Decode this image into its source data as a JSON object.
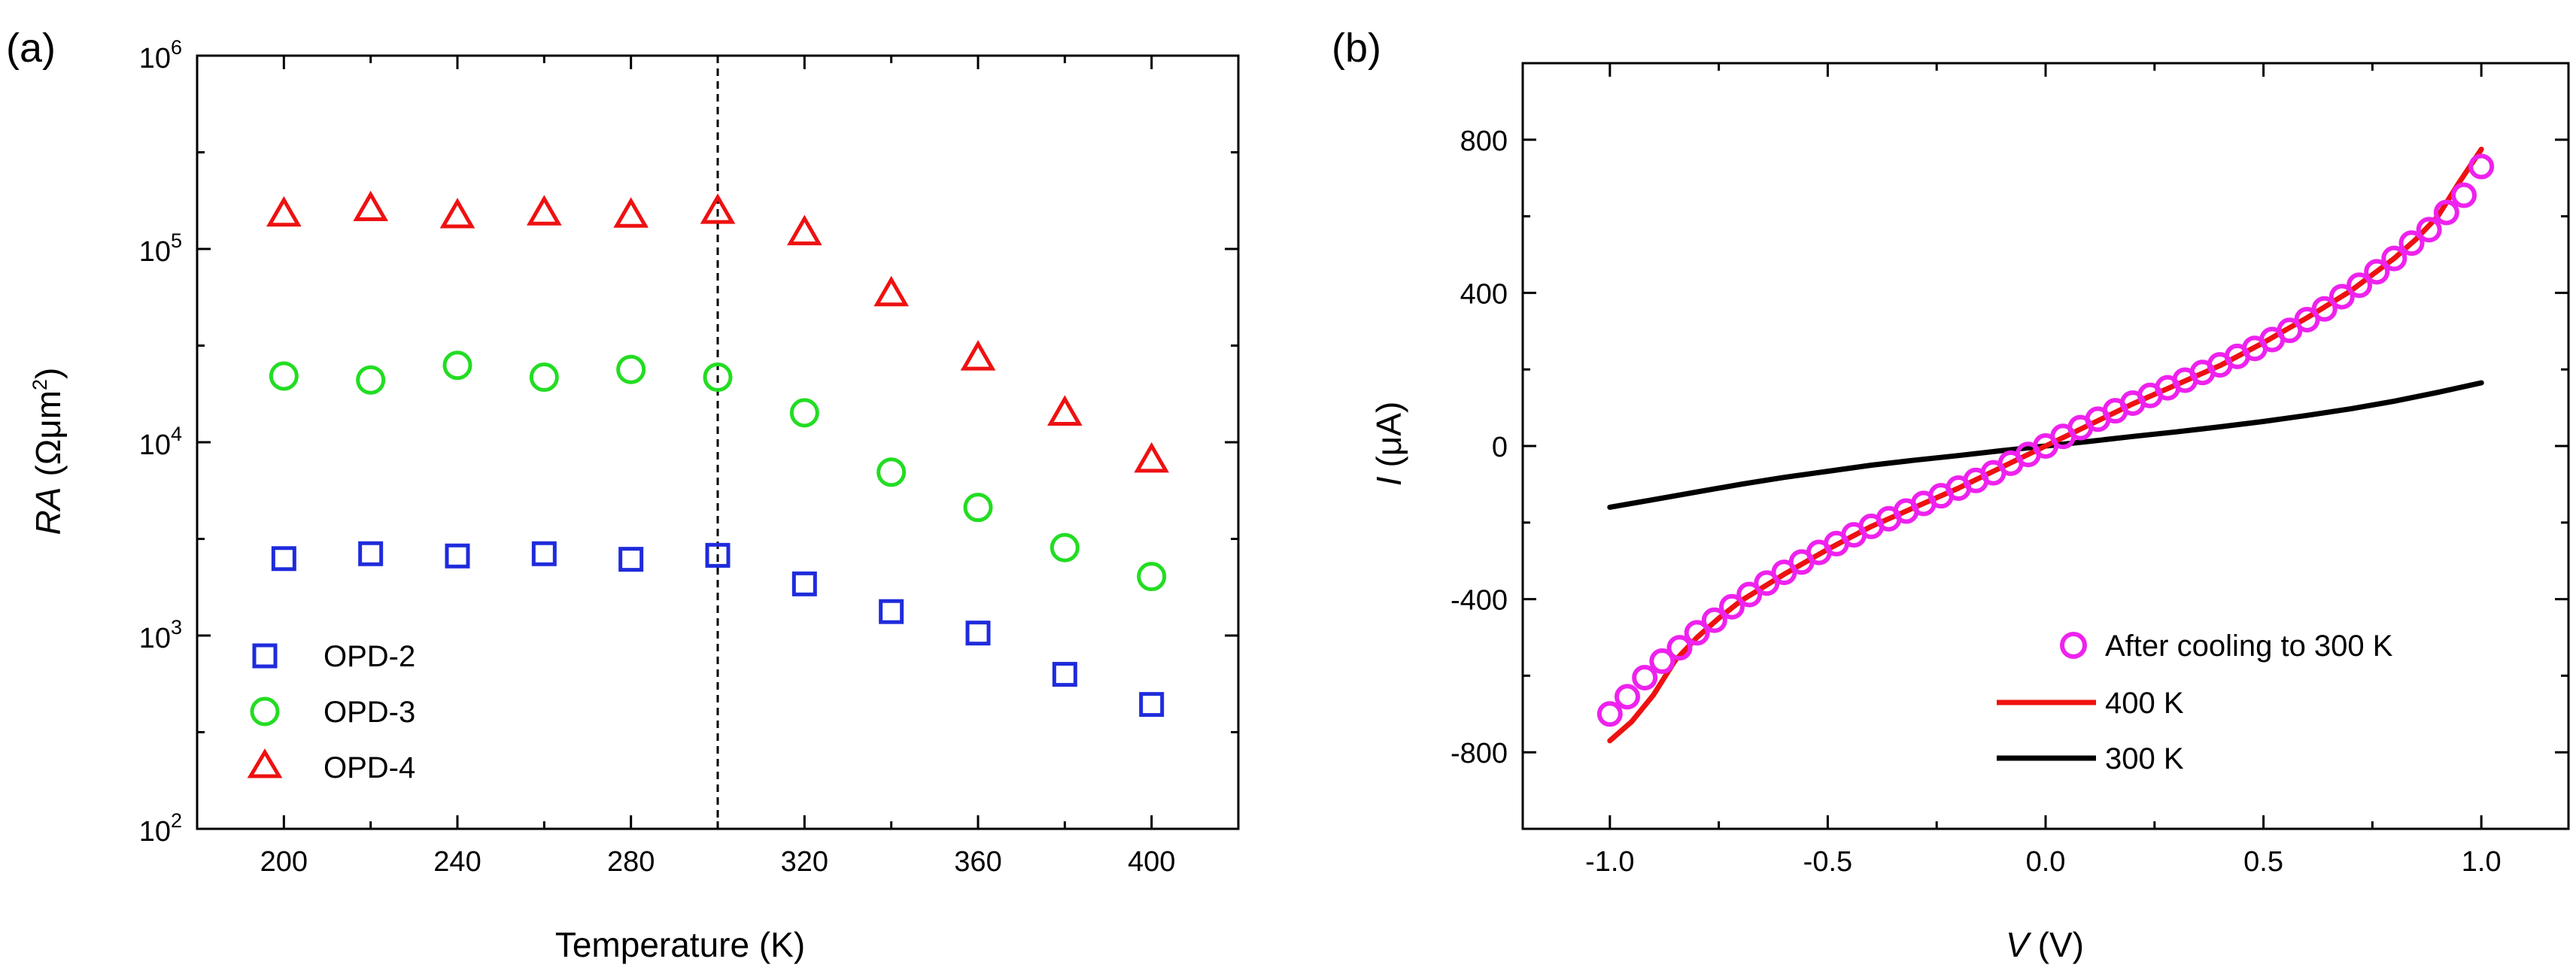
{
  "chart_data": [
    {
      "panel": "(a)",
      "type": "scatter",
      "title": "",
      "xlabel": "Temperature  (K)",
      "ylabel_italic": "RA",
      "ylabel_unit": "(Ωμm",
      "ylabel_unit_sup": "2",
      "ylabel_unit_end": ")",
      "yscale": "log",
      "xlim": [
        180,
        420
      ],
      "ylim": [
        100,
        1000000
      ],
      "xticks": [
        "200",
        "240",
        "280",
        "320",
        "360",
        "400"
      ],
      "yticks": [
        {
          "base": "10",
          "exp": "2"
        },
        {
          "base": "10",
          "exp": "3"
        },
        {
          "base": "10",
          "exp": "4"
        },
        {
          "base": "10",
          "exp": "5"
        },
        {
          "base": "10",
          "exp": "6"
        }
      ],
      "vline_x": 300,
      "legend_position": "bottom-left",
      "series": [
        {
          "name": "OPD-2",
          "marker": "square",
          "color": "#1f2bdc",
          "x": [
            200,
            220,
            240,
            260,
            280,
            300,
            320,
            340,
            360,
            380,
            400
          ],
          "y": [
            2500,
            2650,
            2580,
            2650,
            2480,
            2600,
            1850,
            1330,
            1030,
            630,
            440
          ]
        },
        {
          "name": "OPD-3",
          "marker": "circle",
          "color": "#22dd22",
          "x": [
            200,
            220,
            240,
            260,
            280,
            300,
            320,
            340,
            360,
            380,
            400
          ],
          "y": [
            22000,
            21000,
            25000,
            21700,
            23800,
            21700,
            14200,
            7000,
            4600,
            2850,
            2020
          ]
        },
        {
          "name": "OPD-4",
          "marker": "triangle",
          "color": "#ee1111",
          "x": [
            200,
            220,
            240,
            260,
            280,
            300,
            320,
            340,
            360,
            380,
            400
          ],
          "y": [
            150000,
            160000,
            147000,
            152000,
            148000,
            155000,
            120000,
            58000,
            27000,
            14000,
            8000
          ]
        }
      ]
    },
    {
      "panel": "(b)",
      "type": "line",
      "title": "",
      "xlabel_italic": "V",
      "xlabel_unit": "(V)",
      "ylabel_italic": "I",
      "ylabel_unit": "(μA)",
      "xlim": [
        -1.2,
        1.2
      ],
      "ylim": [
        -1000,
        1000
      ],
      "xticks": [
        "-1.0",
        "-0.5",
        "0.0",
        "0.5",
        "1.0"
      ],
      "yticks": [
        "-800",
        "-400",
        "0",
        "400",
        "800"
      ],
      "legend_position": "bottom-right",
      "series": [
        {
          "name": "After cooling to 300 K",
          "style": "open-circles",
          "color": "#ee22ee",
          "x": [
            -1.0,
            -0.96,
            -0.92,
            -0.88,
            -0.84,
            -0.8,
            -0.76,
            -0.72,
            -0.68,
            -0.64,
            -0.6,
            -0.56,
            -0.52,
            -0.48,
            -0.44,
            -0.4,
            -0.36,
            -0.32,
            -0.28,
            -0.24,
            -0.2,
            -0.16,
            -0.12,
            -0.08,
            -0.04,
            0.0,
            0.04,
            0.08,
            0.12,
            0.16,
            0.2,
            0.24,
            0.28,
            0.32,
            0.36,
            0.4,
            0.44,
            0.48,
            0.52,
            0.56,
            0.6,
            0.64,
            0.68,
            0.72,
            0.76,
            0.8,
            0.84,
            0.88,
            0.92,
            0.96,
            1.0
          ],
          "y": [
            -700,
            -655,
            -605,
            -562,
            -527,
            -488,
            -455,
            -420,
            -388,
            -358,
            -330,
            -303,
            -278,
            -255,
            -232,
            -210,
            -190,
            -170,
            -150,
            -130,
            -110,
            -90,
            -70,
            -45,
            -22,
            0,
            25,
            48,
            70,
            92,
            112,
            132,
            152,
            172,
            192,
            212,
            234,
            255,
            278,
            302,
            330,
            358,
            390,
            420,
            455,
            490,
            530,
            565,
            610,
            655,
            730
          ]
        },
        {
          "name": "400 K",
          "style": "line",
          "color": "#ee1111",
          "x": [
            -1.0,
            -0.95,
            -0.9,
            -0.85,
            -0.8,
            -0.75,
            -0.7,
            -0.6,
            -0.5,
            -0.4,
            -0.3,
            -0.2,
            -0.1,
            0.0,
            0.1,
            0.2,
            0.3,
            0.4,
            0.5,
            0.6,
            0.7,
            0.8,
            0.85,
            0.9,
            0.95,
            1.0
          ],
          "y": [
            -770,
            -720,
            -650,
            -560,
            -500,
            -450,
            -405,
            -335,
            -270,
            -210,
            -160,
            -110,
            -55,
            0,
            55,
            110,
            160,
            210,
            270,
            335,
            405,
            490,
            540,
            600,
            690,
            775
          ]
        },
        {
          "name": "300 K",
          "style": "line",
          "color": "#000000",
          "x": [
            -1.0,
            -0.9,
            -0.8,
            -0.7,
            -0.6,
            -0.5,
            -0.4,
            -0.3,
            -0.2,
            -0.1,
            0.0,
            0.1,
            0.2,
            0.3,
            0.4,
            0.5,
            0.6,
            0.7,
            0.8,
            0.9,
            1.0
          ],
          "y": [
            -160,
            -140,
            -120,
            -100,
            -82,
            -66,
            -50,
            -37,
            -25,
            -12,
            0,
            12,
            25,
            37,
            50,
            64,
            80,
            97,
            117,
            140,
            165
          ]
        }
      ]
    }
  ]
}
